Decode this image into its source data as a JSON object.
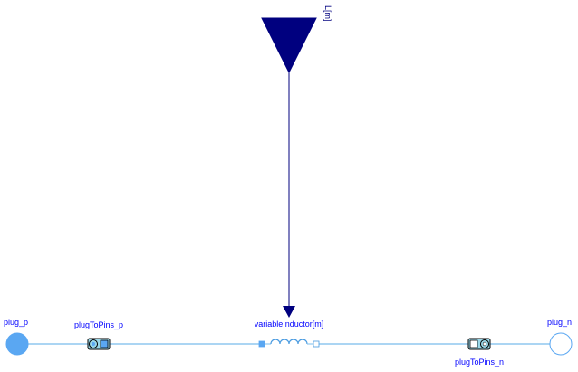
{
  "diagram": {
    "input_label": "L[m]",
    "components": {
      "plug_p": "plug_p",
      "plugToPins_p": "plugToPins_p",
      "variableInductor": "variableInductor[m]",
      "plugToPins_n": "plugToPins_n",
      "plug_n": "plug_n"
    }
  },
  "colors": {
    "wire": "#8fc7ef",
    "signal": "#00007f",
    "plug_fill": "#5aa7f2",
    "label": "#0000ff"
  },
  "icons": {
    "input": "triangle-input-icon",
    "plug_p": "filled-circle-plug-icon",
    "plug_n": "hollow-circle-plug-icon",
    "inductor": "inductor-coil-icon"
  }
}
